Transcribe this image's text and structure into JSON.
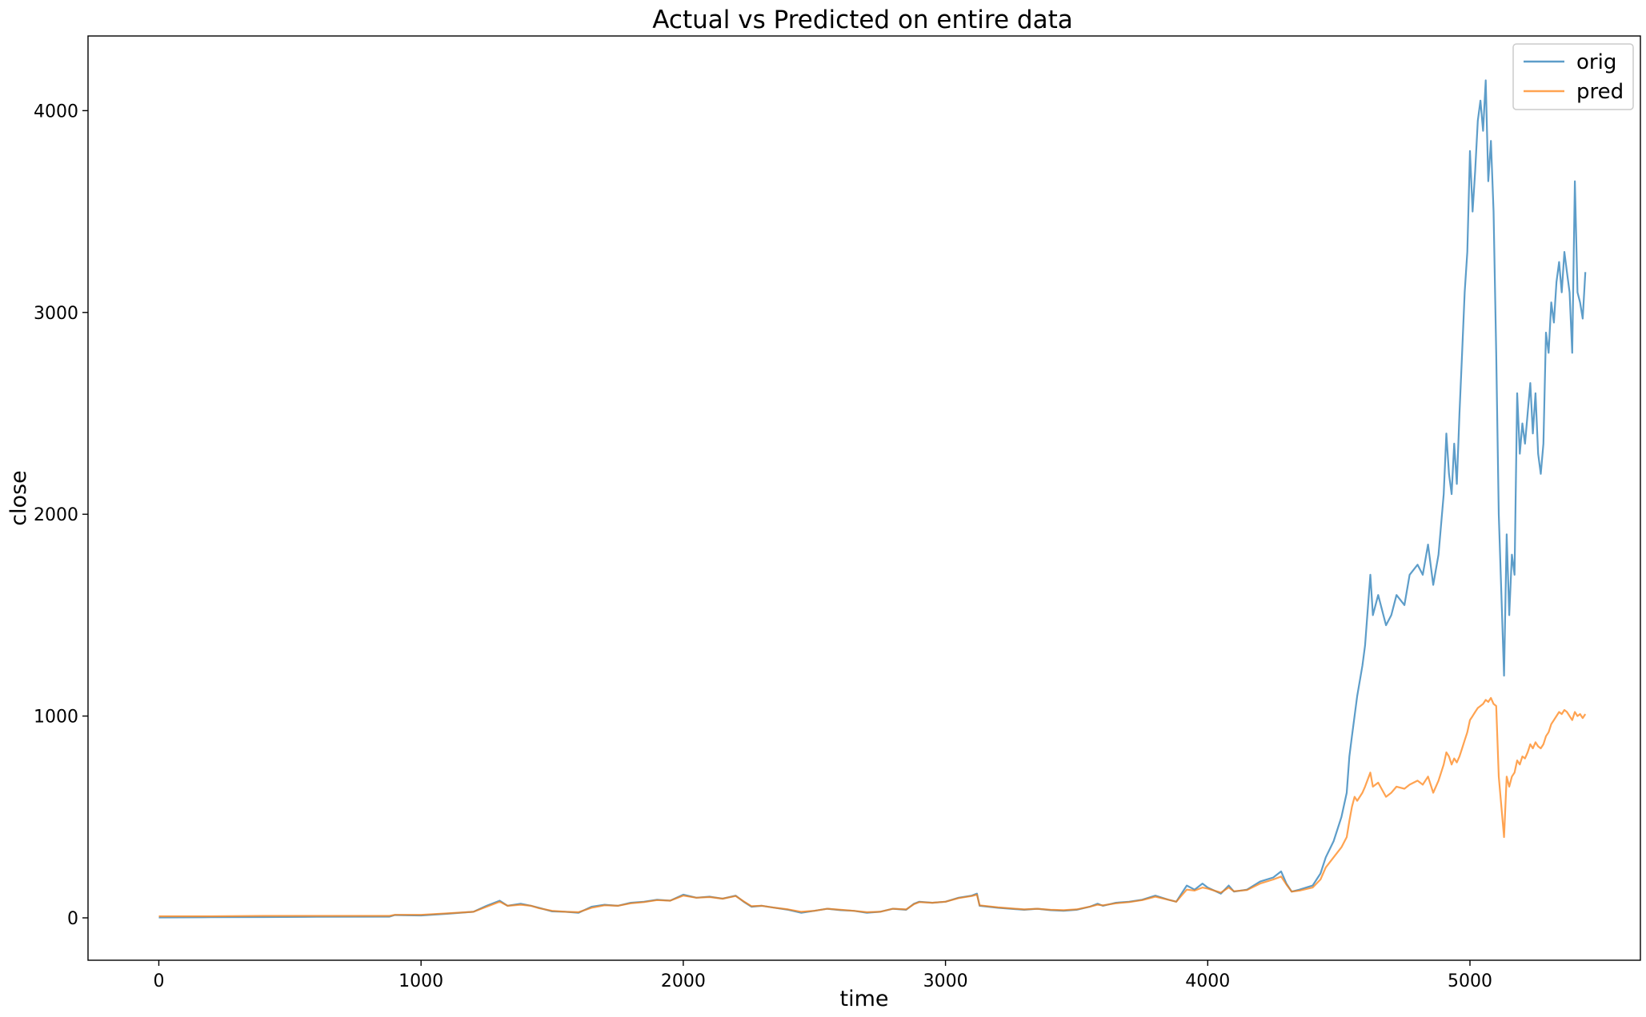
{
  "chart_data": {
    "type": "line",
    "title": "Actual vs Predicted on entire data",
    "xlabel": "time",
    "ylabel": "close",
    "xlim": [
      -270,
      5650
    ],
    "ylim": [
      -210,
      4370
    ],
    "xticks": [
      0,
      1000,
      2000,
      3000,
      4000,
      5000
    ],
    "yticks": [
      0,
      1000,
      2000,
      3000,
      4000
    ],
    "xtick_labels": [
      "0",
      "1000",
      "2000",
      "3000",
      "4000",
      "5000"
    ],
    "ytick_labels": [
      "0",
      "1000",
      "2000",
      "3000",
      "4000"
    ],
    "grid": false,
    "legend_position": "top-right",
    "series": [
      {
        "name": "orig",
        "color": "#1f77b4",
        "points": [
          [
            0,
            2
          ],
          [
            200,
            3
          ],
          [
            400,
            4
          ],
          [
            600,
            5
          ],
          [
            880,
            6
          ],
          [
            900,
            14
          ],
          [
            1000,
            12
          ],
          [
            1100,
            20
          ],
          [
            1200,
            30
          ],
          [
            1250,
            60
          ],
          [
            1300,
            85
          ],
          [
            1330,
            60
          ],
          [
            1380,
            70
          ],
          [
            1420,
            60
          ],
          [
            1450,
            50
          ],
          [
            1500,
            32
          ],
          [
            1550,
            30
          ],
          [
            1600,
            25
          ],
          [
            1650,
            55
          ],
          [
            1700,
            65
          ],
          [
            1750,
            60
          ],
          [
            1800,
            75
          ],
          [
            1850,
            80
          ],
          [
            1900,
            90
          ],
          [
            1950,
            85
          ],
          [
            2000,
            115
          ],
          [
            2050,
            100
          ],
          [
            2100,
            105
          ],
          [
            2150,
            95
          ],
          [
            2200,
            110
          ],
          [
            2230,
            80
          ],
          [
            2260,
            55
          ],
          [
            2300,
            60
          ],
          [
            2350,
            50
          ],
          [
            2400,
            40
          ],
          [
            2450,
            25
          ],
          [
            2500,
            35
          ],
          [
            2550,
            45
          ],
          [
            2600,
            38
          ],
          [
            2650,
            35
          ],
          [
            2700,
            25
          ],
          [
            2750,
            30
          ],
          [
            2800,
            45
          ],
          [
            2850,
            40
          ],
          [
            2880,
            70
          ],
          [
            2900,
            80
          ],
          [
            2950,
            75
          ],
          [
            3000,
            80
          ],
          [
            3050,
            100
          ],
          [
            3100,
            110
          ],
          [
            3120,
            120
          ],
          [
            3130,
            60
          ],
          [
            3200,
            50
          ],
          [
            3300,
            40
          ],
          [
            3350,
            45
          ],
          [
            3400,
            38
          ],
          [
            3450,
            35
          ],
          [
            3500,
            40
          ],
          [
            3550,
            55
          ],
          [
            3580,
            70
          ],
          [
            3600,
            60
          ],
          [
            3650,
            75
          ],
          [
            3700,
            80
          ],
          [
            3750,
            90
          ],
          [
            3800,
            110
          ],
          [
            3850,
            90
          ],
          [
            3880,
            80
          ],
          [
            3900,
            120
          ],
          [
            3920,
            160
          ],
          [
            3950,
            140
          ],
          [
            3980,
            170
          ],
          [
            4000,
            150
          ],
          [
            4050,
            120
          ],
          [
            4080,
            160
          ],
          [
            4100,
            130
          ],
          [
            4150,
            140
          ],
          [
            4200,
            180
          ],
          [
            4250,
            200
          ],
          [
            4280,
            230
          ],
          [
            4300,
            170
          ],
          [
            4320,
            130
          ],
          [
            4350,
            140
          ],
          [
            4400,
            160
          ],
          [
            4430,
            220
          ],
          [
            4450,
            300
          ],
          [
            4480,
            380
          ],
          [
            4510,
            500
          ],
          [
            4530,
            620
          ],
          [
            4540,
            800
          ],
          [
            4550,
            900
          ],
          [
            4560,
            1000
          ],
          [
            4570,
            1100
          ],
          [
            4590,
            1250
          ],
          [
            4600,
            1350
          ],
          [
            4620,
            1700
          ],
          [
            4630,
            1500
          ],
          [
            4650,
            1600
          ],
          [
            4680,
            1450
          ],
          [
            4700,
            1500
          ],
          [
            4720,
            1600
          ],
          [
            4750,
            1550
          ],
          [
            4770,
            1700
          ],
          [
            4800,
            1750
          ],
          [
            4820,
            1700
          ],
          [
            4840,
            1850
          ],
          [
            4860,
            1650
          ],
          [
            4880,
            1800
          ],
          [
            4900,
            2100
          ],
          [
            4910,
            2400
          ],
          [
            4920,
            2200
          ],
          [
            4930,
            2100
          ],
          [
            4940,
            2350
          ],
          [
            4950,
            2150
          ],
          [
            4960,
            2500
          ],
          [
            4970,
            2800
          ],
          [
            4980,
            3100
          ],
          [
            4990,
            3300
          ],
          [
            5000,
            3800
          ],
          [
            5010,
            3500
          ],
          [
            5020,
            3700
          ],
          [
            5030,
            3950
          ],
          [
            5040,
            4050
          ],
          [
            5050,
            3900
          ],
          [
            5060,
            4150
          ],
          [
            5070,
            3650
          ],
          [
            5080,
            3850
          ],
          [
            5090,
            3500
          ],
          [
            5100,
            2800
          ],
          [
            5110,
            2000
          ],
          [
            5120,
            1600
          ],
          [
            5130,
            1200
          ],
          [
            5140,
            1900
          ],
          [
            5150,
            1500
          ],
          [
            5160,
            1800
          ],
          [
            5170,
            1700
          ],
          [
            5180,
            2600
          ],
          [
            5190,
            2300
          ],
          [
            5200,
            2450
          ],
          [
            5210,
            2350
          ],
          [
            5220,
            2500
          ],
          [
            5230,
            2650
          ],
          [
            5240,
            2400
          ],
          [
            5250,
            2600
          ],
          [
            5260,
            2300
          ],
          [
            5270,
            2200
          ],
          [
            5280,
            2350
          ],
          [
            5290,
            2900
          ],
          [
            5300,
            2800
          ],
          [
            5310,
            3050
          ],
          [
            5320,
            2950
          ],
          [
            5330,
            3150
          ],
          [
            5340,
            3250
          ],
          [
            5350,
            3100
          ],
          [
            5360,
            3300
          ],
          [
            5370,
            3200
          ],
          [
            5380,
            3100
          ],
          [
            5390,
            2800
          ],
          [
            5400,
            3650
          ],
          [
            5410,
            3100
          ],
          [
            5420,
            3050
          ],
          [
            5430,
            2970
          ],
          [
            5440,
            3200
          ]
        ]
      },
      {
        "name": "pred",
        "color": "#ff7f0e",
        "points": [
          [
            0,
            8
          ],
          [
            200,
            8
          ],
          [
            400,
            10
          ],
          [
            600,
            10
          ],
          [
            880,
            10
          ],
          [
            900,
            15
          ],
          [
            1000,
            15
          ],
          [
            1100,
            22
          ],
          [
            1200,
            30
          ],
          [
            1250,
            55
          ],
          [
            1300,
            80
          ],
          [
            1330,
            60
          ],
          [
            1380,
            65
          ],
          [
            1420,
            60
          ],
          [
            1450,
            48
          ],
          [
            1500,
            35
          ],
          [
            1550,
            30
          ],
          [
            1600,
            28
          ],
          [
            1650,
            50
          ],
          [
            1700,
            62
          ],
          [
            1750,
            60
          ],
          [
            1800,
            72
          ],
          [
            1850,
            78
          ],
          [
            1900,
            88
          ],
          [
            1950,
            85
          ],
          [
            2000,
            110
          ],
          [
            2050,
            100
          ],
          [
            2100,
            103
          ],
          [
            2150,
            95
          ],
          [
            2200,
            108
          ],
          [
            2230,
            82
          ],
          [
            2260,
            58
          ],
          [
            2300,
            60
          ],
          [
            2350,
            50
          ],
          [
            2400,
            42
          ],
          [
            2450,
            30
          ],
          [
            2500,
            35
          ],
          [
            2550,
            45
          ],
          [
            2600,
            40
          ],
          [
            2650,
            35
          ],
          [
            2700,
            28
          ],
          [
            2750,
            30
          ],
          [
            2800,
            45
          ],
          [
            2850,
            42
          ],
          [
            2880,
            68
          ],
          [
            2900,
            78
          ],
          [
            2950,
            75
          ],
          [
            3000,
            80
          ],
          [
            3050,
            98
          ],
          [
            3100,
            108
          ],
          [
            3120,
            115
          ],
          [
            3130,
            62
          ],
          [
            3200,
            52
          ],
          [
            3300,
            42
          ],
          [
            3350,
            45
          ],
          [
            3400,
            40
          ],
          [
            3450,
            38
          ],
          [
            3500,
            42
          ],
          [
            3550,
            55
          ],
          [
            3580,
            65
          ],
          [
            3600,
            62
          ],
          [
            3650,
            72
          ],
          [
            3700,
            78
          ],
          [
            3750,
            88
          ],
          [
            3800,
            105
          ],
          [
            3850,
            90
          ],
          [
            3880,
            80
          ],
          [
            3900,
            110
          ],
          [
            3920,
            140
          ],
          [
            3950,
            135
          ],
          [
            3980,
            150
          ],
          [
            4000,
            145
          ],
          [
            4050,
            125
          ],
          [
            4080,
            150
          ],
          [
            4100,
            132
          ],
          [
            4150,
            138
          ],
          [
            4200,
            170
          ],
          [
            4250,
            190
          ],
          [
            4280,
            205
          ],
          [
            4300,
            165
          ],
          [
            4320,
            130
          ],
          [
            4350,
            135
          ],
          [
            4400,
            150
          ],
          [
            4430,
            190
          ],
          [
            4450,
            250
          ],
          [
            4480,
            300
          ],
          [
            4510,
            350
          ],
          [
            4530,
            400
          ],
          [
            4540,
            480
          ],
          [
            4550,
            550
          ],
          [
            4560,
            600
          ],
          [
            4570,
            580
          ],
          [
            4590,
            620
          ],
          [
            4600,
            650
          ],
          [
            4620,
            720
          ],
          [
            4630,
            650
          ],
          [
            4650,
            670
          ],
          [
            4680,
            600
          ],
          [
            4700,
            620
          ],
          [
            4720,
            650
          ],
          [
            4750,
            640
          ],
          [
            4770,
            660
          ],
          [
            4800,
            680
          ],
          [
            4820,
            660
          ],
          [
            4840,
            700
          ],
          [
            4860,
            620
          ],
          [
            4880,
            680
          ],
          [
            4900,
            760
          ],
          [
            4910,
            820
          ],
          [
            4920,
            800
          ],
          [
            4930,
            760
          ],
          [
            4940,
            790
          ],
          [
            4950,
            770
          ],
          [
            4960,
            800
          ],
          [
            4970,
            840
          ],
          [
            4980,
            880
          ],
          [
            4990,
            920
          ],
          [
            5000,
            980
          ],
          [
            5010,
            1000
          ],
          [
            5020,
            1020
          ],
          [
            5030,
            1040
          ],
          [
            5040,
            1050
          ],
          [
            5050,
            1060
          ],
          [
            5060,
            1080
          ],
          [
            5070,
            1070
          ],
          [
            5080,
            1090
          ],
          [
            5090,
            1060
          ],
          [
            5100,
            1050
          ],
          [
            5110,
            700
          ],
          [
            5120,
            550
          ],
          [
            5130,
            400
          ],
          [
            5140,
            700
          ],
          [
            5150,
            650
          ],
          [
            5160,
            700
          ],
          [
            5170,
            720
          ],
          [
            5180,
            780
          ],
          [
            5190,
            760
          ],
          [
            5200,
            800
          ],
          [
            5210,
            790
          ],
          [
            5220,
            820
          ],
          [
            5230,
            860
          ],
          [
            5240,
            840
          ],
          [
            5250,
            870
          ],
          [
            5260,
            850
          ],
          [
            5270,
            840
          ],
          [
            5280,
            860
          ],
          [
            5290,
            900
          ],
          [
            5300,
            920
          ],
          [
            5310,
            960
          ],
          [
            5320,
            980
          ],
          [
            5330,
            1000
          ],
          [
            5340,
            1020
          ],
          [
            5350,
            1010
          ],
          [
            5360,
            1030
          ],
          [
            5370,
            1020
          ],
          [
            5380,
            1000
          ],
          [
            5390,
            980
          ],
          [
            5400,
            1020
          ],
          [
            5410,
            1000
          ],
          [
            5420,
            1010
          ],
          [
            5430,
            990
          ],
          [
            5440,
            1010
          ]
        ]
      }
    ]
  }
}
